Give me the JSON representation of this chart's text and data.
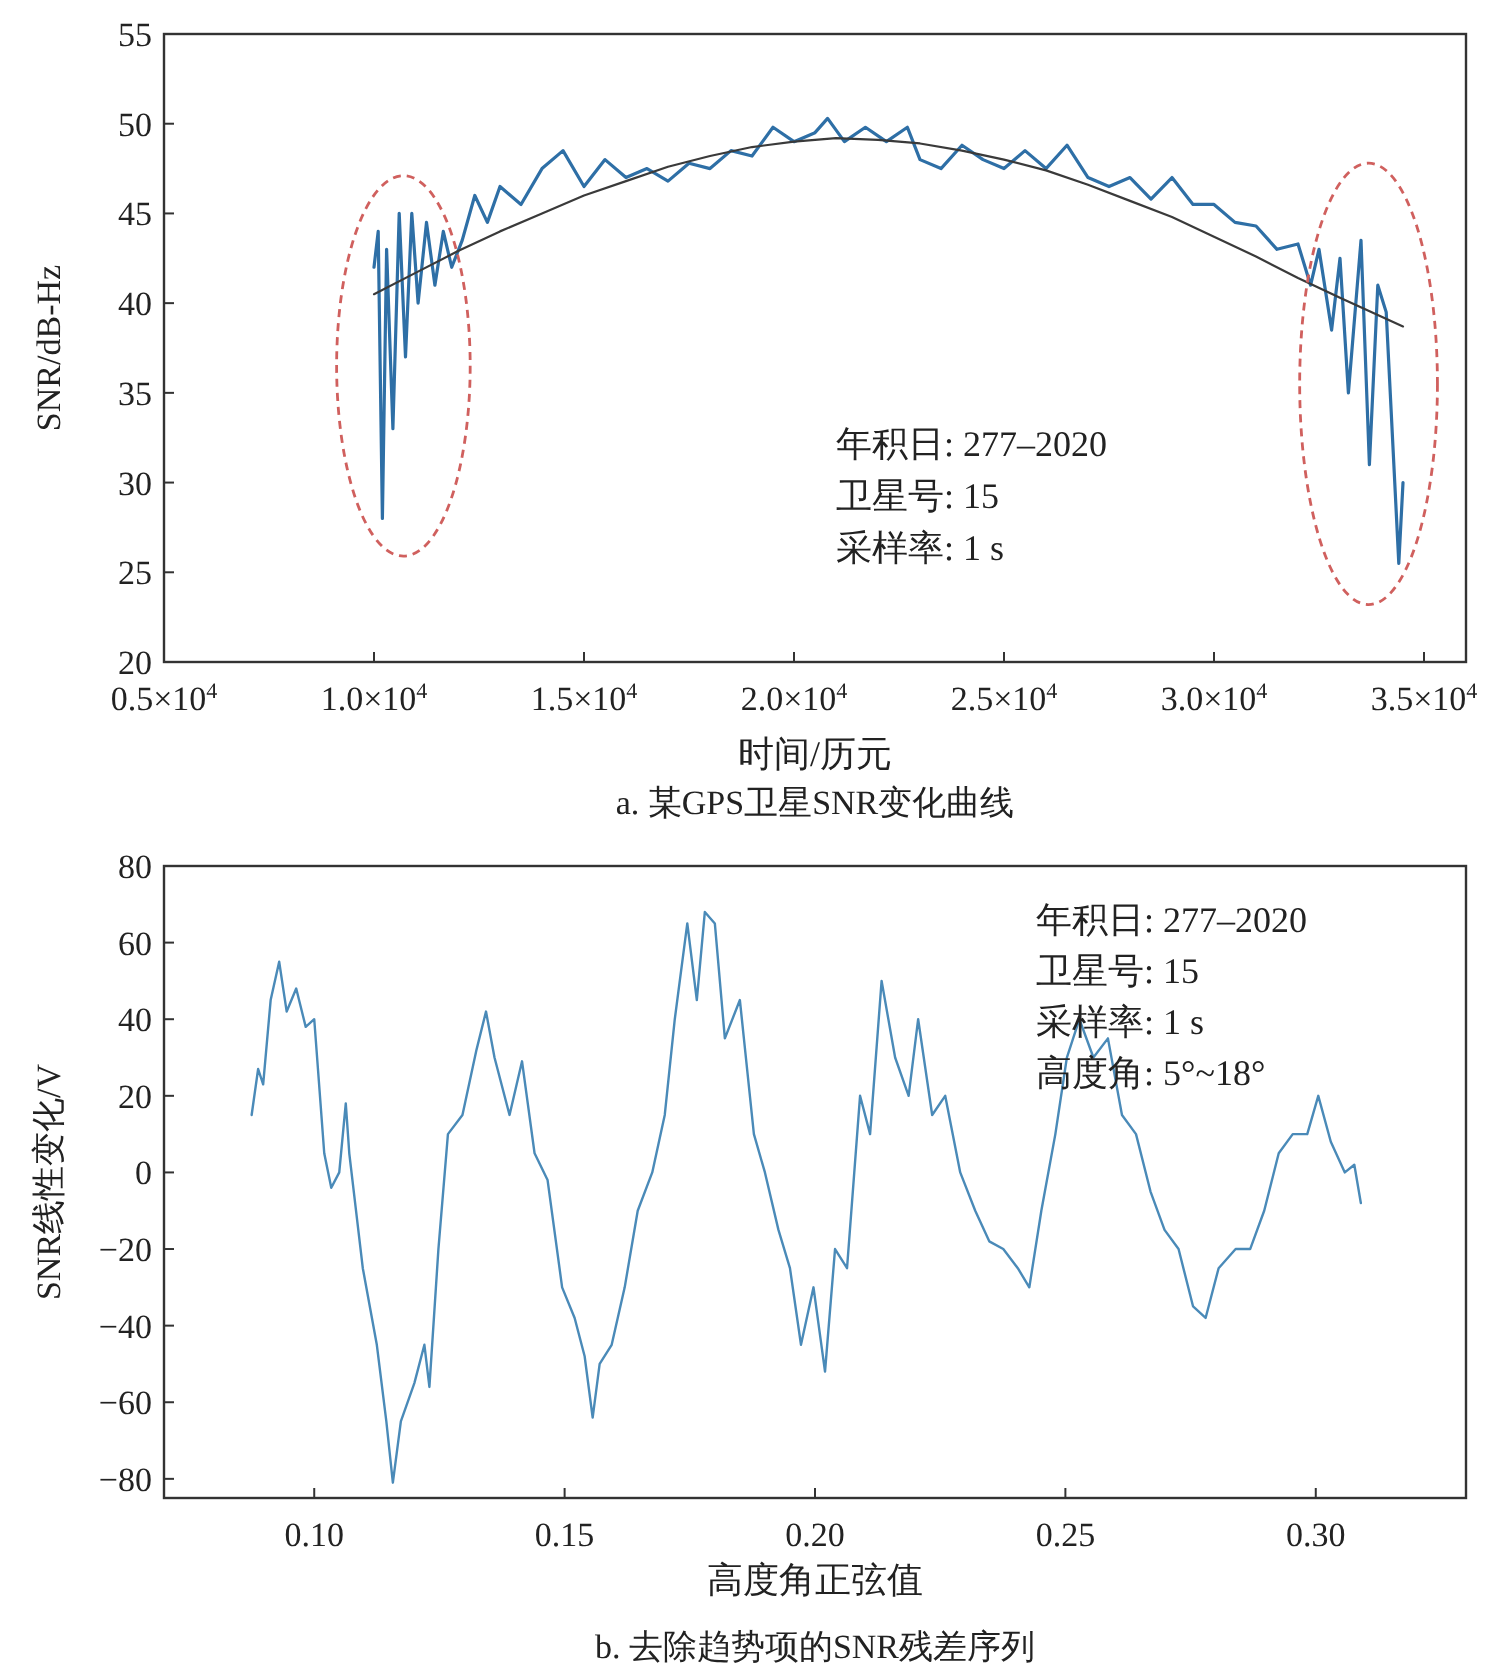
{
  "chart_data": [
    {
      "type": "line",
      "title": "a. 某GPS卫星SNR变化曲线",
      "xlabel": "时间/历元",
      "ylabel": "SNR/dB-Hz",
      "xlim": [
        5000,
        36000
      ],
      "ylim": [
        20,
        55
      ],
      "xticks": [
        {
          "value": 5000,
          "label": "0.5×10$^{4}$"
        },
        {
          "value": 10000,
          "label": "1.0×10$^{4}$"
        },
        {
          "value": 15000,
          "label": "1.5×10$^{4}$"
        },
        {
          "value": 20000,
          "label": "2.0×10$^{4}$"
        },
        {
          "value": 25000,
          "label": "2.5×10$^{4}$"
        },
        {
          "value": 30000,
          "label": "3.0×10$^{4}$"
        },
        {
          "value": 35000,
          "label": "3.5×10$^{4}$"
        }
      ],
      "yticks": [
        20,
        25,
        30,
        35,
        40,
        45,
        50,
        55
      ],
      "annotations": [
        "年积日: 277–2020",
        "卫星号: 15",
        "采样率: 1 s"
      ],
      "series": [
        {
          "color": "#2e6fa6",
          "x": [
            10000,
            10100,
            10200,
            10300,
            10450,
            10600,
            10750,
            10900,
            11050,
            11250,
            11450,
            11650,
            11850,
            12100,
            12400,
            12700,
            13000,
            13500,
            14000,
            14500,
            15000,
            15500,
            16000,
            16500,
            17000,
            17500,
            18000,
            18500,
            19000,
            19500,
            20000,
            20500,
            20800,
            21200,
            21700,
            22200,
            22700,
            23000,
            23500,
            24000,
            24500,
            25000,
            25500,
            26000,
            26500,
            27000,
            27500,
            28000,
            28500,
            29000,
            29500,
            30000,
            30500,
            31000,
            31500,
            32000,
            32300,
            32500,
            32800,
            33000,
            33200,
            33500,
            33700,
            33900,
            34100,
            34400,
            34500
          ],
          "values": [
            42,
            44,
            28,
            43,
            33,
            45,
            37,
            45,
            40,
            44.5,
            41,
            44,
            42,
            43.5,
            46,
            44.5,
            46.5,
            45.5,
            47.5,
            48.5,
            46.5,
            48,
            47,
            47.5,
            46.8,
            47.8,
            47.5,
            48.5,
            48.2,
            49.8,
            49,
            49.5,
            50.3,
            49,
            49.8,
            49,
            49.8,
            48,
            47.5,
            48.8,
            48,
            47.5,
            48.5,
            47.5,
            48.8,
            47,
            46.5,
            47,
            45.8,
            47,
            45.5,
            45.5,
            44.5,
            44.3,
            43,
            43.3,
            41,
            43,
            38.5,
            42.5,
            35,
            43.5,
            31,
            41,
            39.5,
            25.5,
            30
          ]
        },
        {
          "color": "#3a3a3a",
          "x": [
            10000,
            11000,
            12000,
            13000,
            14000,
            15000,
            16000,
            17000,
            18000,
            19000,
            20000,
            21000,
            22000,
            23000,
            24000,
            25000,
            26000,
            27000,
            28000,
            29000,
            30000,
            31000,
            32000,
            33000,
            34500
          ],
          "values": [
            40.5,
            41.7,
            42.9,
            44,
            45,
            46,
            46.8,
            47.6,
            48.2,
            48.7,
            49,
            49.2,
            49.1,
            48.9,
            48.5,
            48,
            47.4,
            46.6,
            45.7,
            44.8,
            43.7,
            42.6,
            41.4,
            40.3,
            38.7
          ]
        }
      ]
    },
    {
      "type": "line",
      "title": "b. 去除趋势项的SNR残差序列",
      "xlabel": "高度角正弦值",
      "ylabel": "SNR线性变化/V",
      "xlim": [
        0.07,
        0.33
      ],
      "ylim": [
        -85,
        80
      ],
      "xticks": [
        {
          "value": 0.1,
          "label": "0.10"
        },
        {
          "value": 0.15,
          "label": "0.15"
        },
        {
          "value": 0.2,
          "label": "0.20"
        },
        {
          "value": 0.25,
          "label": "0.25"
        },
        {
          "value": 0.3,
          "label": "0.30"
        }
      ],
      "yticks": [
        {
          "value": -80,
          "label": "−80"
        },
        {
          "value": -60,
          "label": "−60"
        },
        {
          "value": -40,
          "label": "−40"
        },
        {
          "value": -20,
          "label": "−20"
        },
        0,
        20,
        40,
        60,
        80
      ],
      "annotations": [
        "年积日: 277–2020",
        "卫星号: 15",
        "采样率: 1 s",
        "高度角: 5°~18°"
      ],
      "series": [
        {
          "color": "#4a8ab8",
          "x": [
            0.0875,
            0.0888,
            0.0898,
            0.0913,
            0.093,
            0.0945,
            0.0964,
            0.0983,
            0.1,
            0.102,
            0.1034,
            0.105,
            0.1063,
            0.107,
            0.1097,
            0.1125,
            0.1144,
            0.1157,
            0.1173,
            0.12,
            0.122,
            0.123,
            0.1248,
            0.1267,
            0.1296,
            0.1324,
            0.1343,
            0.136,
            0.139,
            0.1415,
            0.144,
            0.1466,
            0.1495,
            0.152,
            0.154,
            0.1556,
            0.157,
            0.1594,
            0.162,
            0.1646,
            0.1675,
            0.17,
            0.172,
            0.1745,
            0.1764,
            0.178,
            0.18,
            0.182,
            0.185,
            0.1878,
            0.19,
            0.1927,
            0.195,
            0.1972,
            0.1997,
            0.202,
            0.204,
            0.2064,
            0.209,
            0.211,
            0.2133,
            0.216,
            0.2187,
            0.2206,
            0.2234,
            0.226,
            0.229,
            0.232,
            0.2348,
            0.2376,
            0.2405,
            0.2428,
            0.2452,
            0.248,
            0.2503,
            0.2528,
            0.2556,
            0.2585,
            0.2613,
            0.2641,
            0.267,
            0.2698,
            0.2726,
            0.2755,
            0.278,
            0.2806,
            0.284,
            0.2869,
            0.2897,
            0.2926,
            0.2954,
            0.2983,
            0.3005,
            0.303,
            0.3058,
            0.3077,
            0.309
          ],
          "values": [
            15,
            27,
            23,
            45,
            55,
            42,
            48,
            38,
            40,
            5,
            -4,
            0,
            18,
            5,
            -25,
            -45,
            -65,
            -81,
            -65,
            -55,
            -45,
            -56,
            -20,
            10,
            15,
            32,
            42,
            30,
            15,
            29,
            5,
            -2,
            -30,
            -38,
            -48,
            -64,
            -50,
            -45,
            -30,
            -10,
            0,
            15,
            40,
            65,
            45,
            68,
            65,
            35,
            45,
            10,
            0,
            -15,
            -25,
            -45,
            -30,
            -52,
            -20,
            -25,
            20,
            10,
            50,
            30,
            20,
            40,
            15,
            20,
            0,
            -10,
            -18,
            -20,
            -25,
            -30,
            -10,
            10,
            30,
            40,
            30,
            35,
            15,
            10,
            -5,
            -15,
            -20,
            -35,
            -38,
            -25,
            -20,
            -20,
            -10,
            5,
            10,
            10,
            20,
            8,
            0,
            2,
            -8
          ]
        }
      ]
    }
  ]
}
